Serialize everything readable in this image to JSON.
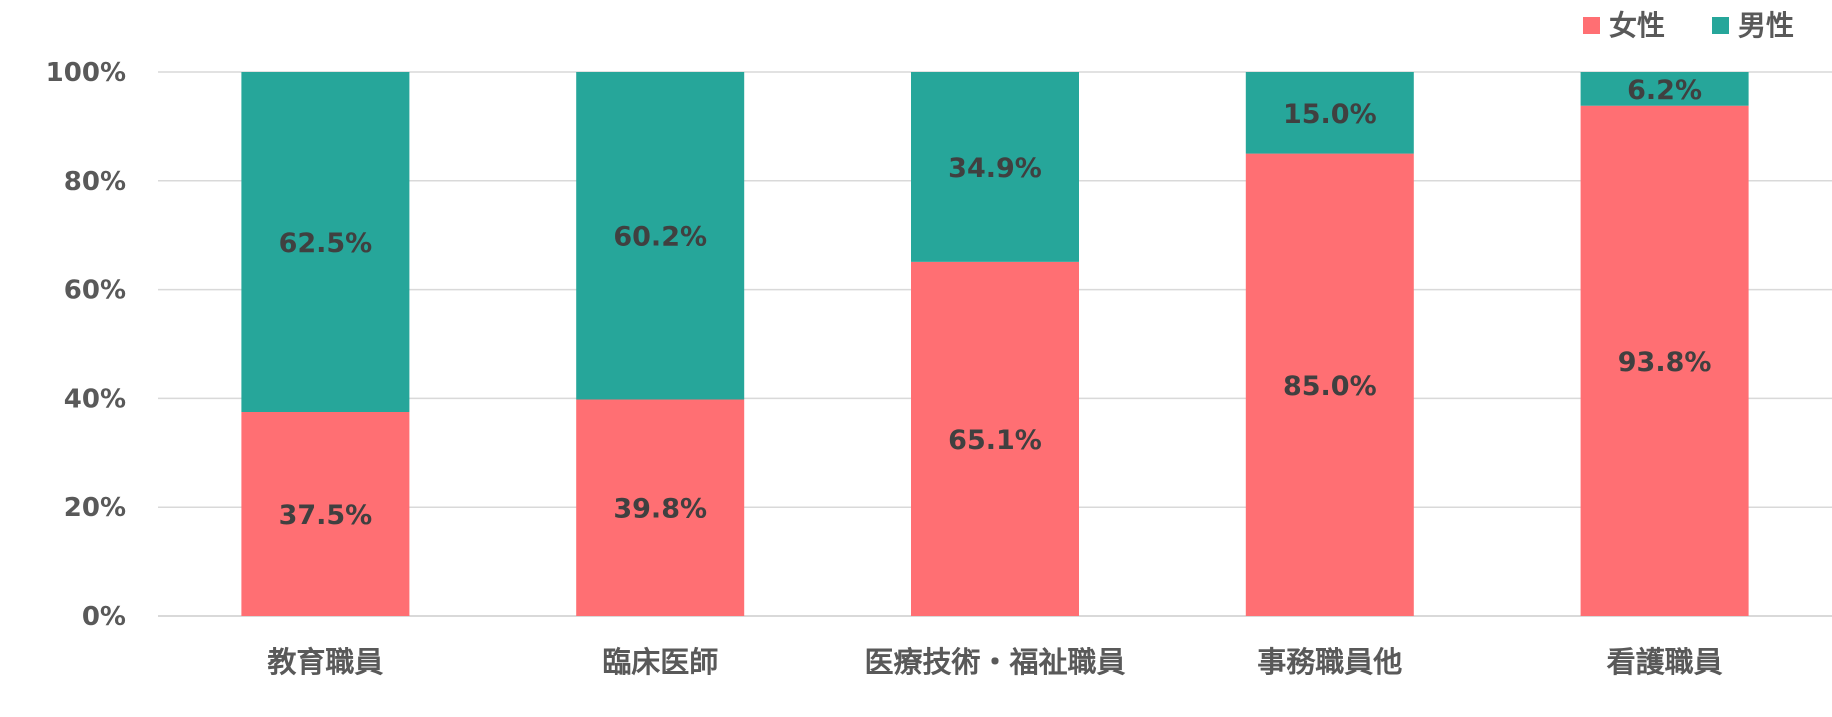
{
  "chart_data": {
    "type": "bar",
    "stacked": true,
    "percent": true,
    "title": "",
    "xlabel": "",
    "ylabel": "",
    "ylim": [
      0,
      100
    ],
    "y_ticks": [
      "0%",
      "20%",
      "40%",
      "60%",
      "80%",
      "100%"
    ],
    "grid": true,
    "legend_position": "top-right",
    "categories": [
      "教育職員",
      "臨床医師",
      "医療技術・福祉職員",
      "事務職員他",
      "看護職員"
    ],
    "series": [
      {
        "name": "女性",
        "color": "#FF6F73",
        "values": [
          37.5,
          39.8,
          65.1,
          85.0,
          93.8
        ],
        "labels": [
          "37.5%",
          "39.8%",
          "65.1%",
          "85.0%",
          "93.8%"
        ]
      },
      {
        "name": "男性",
        "color": "#26A69A",
        "values": [
          62.5,
          60.2,
          34.9,
          15.0,
          6.2
        ],
        "labels": [
          "62.5%",
          "60.2%",
          "34.9%",
          "15.0%",
          "6.2%"
        ]
      }
    ]
  }
}
